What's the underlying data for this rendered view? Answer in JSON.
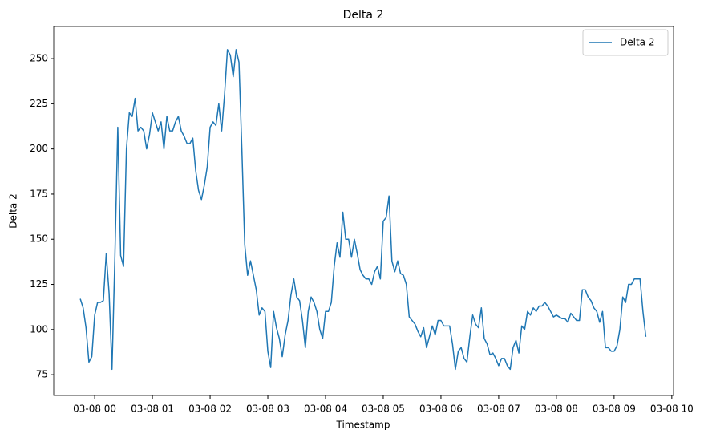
{
  "chart_data": {
    "type": "line",
    "title": "Delta 2",
    "x_label": "Timestamp",
    "y_label": "Delta 2",
    "x": [
      -0.25,
      -0.2,
      -0.15,
      -0.1,
      -0.05,
      0,
      0.05,
      0.1,
      0.15,
      0.2,
      0.25,
      0.3,
      0.35,
      0.4,
      0.45,
      0.5,
      0.55,
      0.6,
      0.65,
      0.7,
      0.75,
      0.8,
      0.85,
      0.9,
      0.95,
      1,
      1.05,
      1.1,
      1.15,
      1.2,
      1.25,
      1.3,
      1.35,
      1.4,
      1.45,
      1.5,
      1.55,
      1.6,
      1.65,
      1.7,
      1.75,
      1.8,
      1.85,
      1.9,
      1.95,
      2,
      2.05,
      2.1,
      2.15,
      2.2,
      2.25,
      2.3,
      2.35,
      2.4,
      2.45,
      2.5,
      2.55,
      2.6,
      2.65,
      2.7,
      2.75,
      2.8,
      2.85,
      2.9,
      2.95,
      3,
      3.05,
      3.1,
      3.15,
      3.2,
      3.25,
      3.3,
      3.35,
      3.4,
      3.45,
      3.5,
      3.55,
      3.6,
      3.65,
      3.7,
      3.75,
      3.8,
      3.85,
      3.9,
      3.95,
      4,
      4.05,
      4.1,
      4.15,
      4.2,
      4.25,
      4.3,
      4.35,
      4.4,
      4.45,
      4.5,
      4.55,
      4.6,
      4.65,
      4.7,
      4.75,
      4.8,
      4.85,
      4.9,
      4.95,
      5,
      5.05,
      5.1,
      5.15,
      5.2,
      5.25,
      5.3,
      5.35,
      5.4,
      5.45,
      5.5,
      5.55,
      5.6,
      5.65,
      5.7,
      5.75,
      5.8,
      5.85,
      5.9,
      5.95,
      6,
      6.05,
      6.1,
      6.15,
      6.2,
      6.25,
      6.3,
      6.35,
      6.4,
      6.45,
      6.5,
      6.55,
      6.6,
      6.65,
      6.7,
      6.75,
      6.8,
      6.85,
      6.9,
      6.95,
      7,
      7.05,
      7.1,
      7.15,
      7.2,
      7.25,
      7.3,
      7.35,
      7.4,
      7.45,
      7.5,
      7.55,
      7.6,
      7.65,
      7.7,
      7.75,
      7.8,
      7.85,
      7.9,
      7.95,
      8,
      8.05,
      8.1,
      8.15,
      8.2,
      8.25,
      8.3,
      8.35,
      8.4,
      8.45,
      8.5,
      8.55,
      8.6,
      8.65,
      8.7,
      8.75,
      8.8,
      8.85,
      8.9,
      8.95,
      9,
      9.05,
      9.1,
      9.15,
      9.2,
      9.25,
      9.3,
      9.35,
      9.4,
      9.45,
      9.5,
      9.55
    ],
    "series": [
      {
        "name": "Delta 2",
        "color": "#1f77b4",
        "values": [
          117,
          112,
          101,
          82,
          85,
          108,
          115,
          115,
          116,
          142,
          120,
          78,
          140,
          212,
          141,
          135,
          200,
          220,
          218,
          228,
          210,
          212,
          210,
          200,
          208,
          220,
          215,
          210,
          215,
          200,
          218,
          210,
          210,
          215,
          218,
          210,
          207,
          203,
          203,
          206,
          188,
          177,
          172,
          180,
          190,
          212,
          215,
          213,
          225,
          210,
          230,
          255,
          252,
          240,
          255,
          248,
          200,
          147,
          130,
          138,
          130,
          122,
          108,
          112,
          110,
          88,
          79,
          110,
          101,
          95,
          85,
          97,
          105,
          119,
          128,
          118,
          116,
          105,
          90,
          110,
          118,
          115,
          110,
          100,
          95,
          110,
          110,
          115,
          135,
          148,
          140,
          165,
          150,
          150,
          140,
          150,
          142,
          133,
          130,
          128,
          128,
          125,
          132,
          135,
          128,
          160,
          162,
          174,
          138,
          132,
          138,
          131,
          130,
          125,
          107,
          105,
          103,
          99,
          96,
          101,
          90,
          96,
          102,
          97,
          105,
          105,
          102,
          102,
          102,
          92,
          78,
          88,
          90,
          84,
          82,
          96,
          108,
          103,
          101,
          112,
          95,
          92,
          86,
          87,
          84,
          80,
          84,
          84,
          80,
          78,
          90,
          94,
          87,
          102,
          100,
          110,
          108,
          112,
          110,
          113,
          113,
          115,
          113,
          110,
          107,
          108,
          107,
          106,
          106,
          104,
          109,
          107,
          105,
          105,
          122,
          122,
          118,
          116,
          112,
          110,
          104,
          110,
          90,
          90,
          88,
          88,
          91,
          100,
          118,
          115,
          125,
          125,
          128,
          128,
          128,
          110,
          96
        ]
      }
    ],
    "xlim": [
      -0.71,
      10.03
    ],
    "ylim": [
      63.5,
      267.8
    ],
    "xticks": [
      {
        "value": 0,
        "label": "03-08 00"
      },
      {
        "value": 1,
        "label": "03-08 01"
      },
      {
        "value": 2,
        "label": "03-08 02"
      },
      {
        "value": 3,
        "label": "03-08 03"
      },
      {
        "value": 4,
        "label": "03-08 04"
      },
      {
        "value": 5,
        "label": "03-08 05"
      },
      {
        "value": 6,
        "label": "03-08 06"
      },
      {
        "value": 7,
        "label": "03-08 07"
      },
      {
        "value": 8,
        "label": "03-08 08"
      },
      {
        "value": 9,
        "label": "03-08 09"
      },
      {
        "value": 10,
        "label": "03-08 10"
      }
    ],
    "yticks": [
      75,
      100,
      125,
      150,
      175,
      200,
      225,
      250
    ],
    "grid": false,
    "legend": "upper right"
  }
}
